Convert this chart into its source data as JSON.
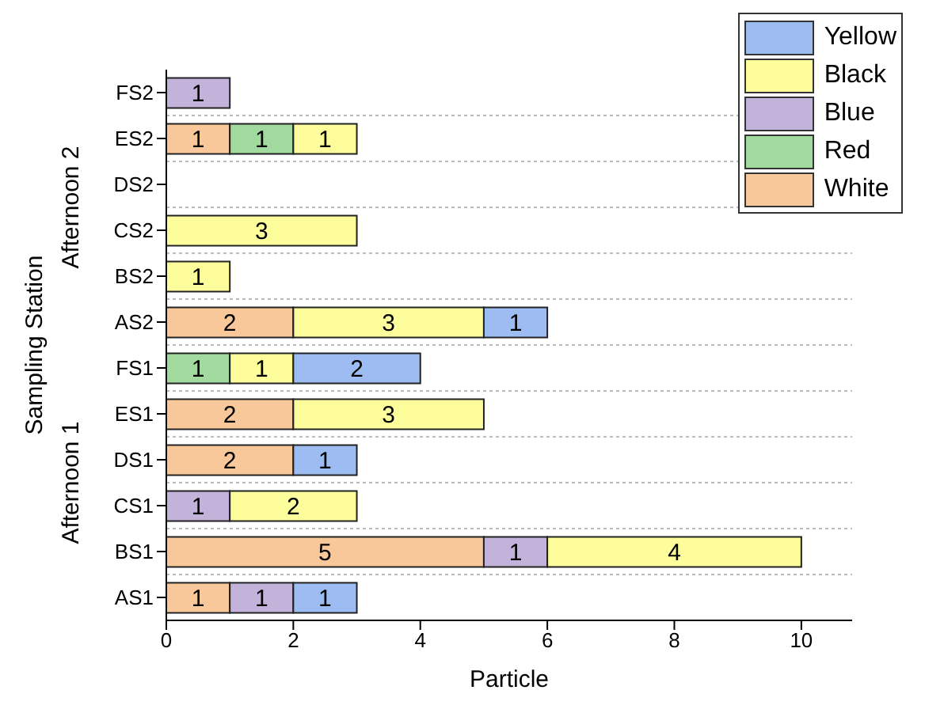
{
  "chart_data": {
    "type": "bar",
    "orientation": "horizontal",
    "stacked": true,
    "xlabel": "Particle",
    "ylabel": "Sampling Station",
    "annotations": [
      "Afternoon 2",
      "Afternoon 1"
    ],
    "categories": [
      "FS2",
      "ES2",
      "DS2",
      "CS2",
      "BS2",
      "AS2",
      "FS1",
      "ES1",
      "DS1",
      "CS1",
      "BS1",
      "AS1"
    ],
    "series": [
      {
        "name": "White",
        "color": "#f9c89a",
        "values": [
          null,
          1,
          null,
          null,
          null,
          2,
          null,
          2,
          2,
          null,
          5,
          1
        ]
      },
      {
        "name": "Red",
        "color": "#a1d99e",
        "values": [
          null,
          1,
          null,
          null,
          null,
          null,
          1,
          null,
          null,
          null,
          null,
          null
        ]
      },
      {
        "name": "Blue",
        "color": "#c3b3da",
        "values": [
          1,
          null,
          null,
          null,
          null,
          null,
          null,
          null,
          null,
          1,
          1,
          1
        ]
      },
      {
        "name": "Black",
        "color": "#fdfd9c",
        "values": [
          null,
          1,
          null,
          3,
          1,
          3,
          1,
          3,
          null,
          2,
          4,
          null
        ]
      },
      {
        "name": "Yellow",
        "color": "#9dbdf2",
        "values": [
          null,
          null,
          null,
          null,
          null,
          1,
          2,
          null,
          1,
          null,
          null,
          1
        ]
      }
    ],
    "xlim": [
      0,
      10.8
    ],
    "xticks": [
      0,
      2,
      4,
      6,
      8,
      10
    ],
    "grid": "y",
    "legend": "top right",
    "data_labels": true
  }
}
